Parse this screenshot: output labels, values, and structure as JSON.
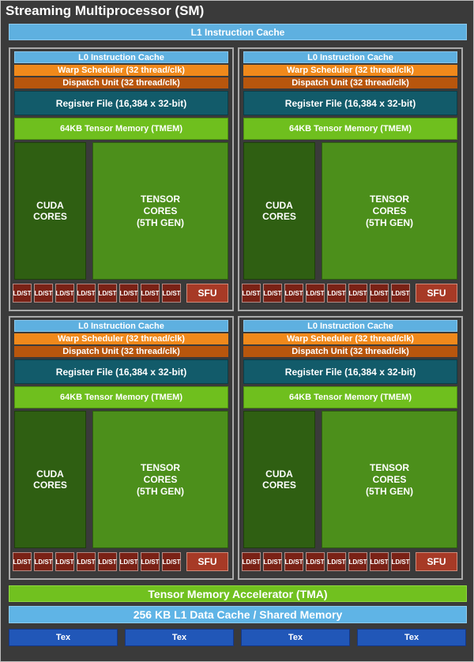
{
  "title": "Streaming Multiprocessor (SM)",
  "l1_instruction_cache": "L1 Instruction Cache",
  "quadrant": {
    "l0_cache": "L0 Instruction Cache",
    "warp_scheduler": "Warp Scheduler (32 thread/clk)",
    "dispatch_unit": "Dispatch Unit (32 thread/clk)",
    "register_file": "Register File (16,384 x 32-bit)",
    "tmem": "64KB Tensor Memory (TMEM)",
    "cuda_cores": "CUDA\nCORES",
    "tensor_cores": "TENSOR\nCORES\n(5TH GEN)",
    "ldst": "LD/ST",
    "sfu": "SFU"
  },
  "tma": "Tensor Memory Accelerator (TMA)",
  "l1_data_cache": "256 KB L1 Data Cache / Shared Memory",
  "tex_units": [
    "Tex",
    "Tex",
    "Tex",
    "Tex"
  ],
  "colors": {
    "background": "#3a3a3a",
    "cache_blue": "#5eb0e0",
    "warp_orange": "#f0891b",
    "dispatch_brown": "#b8560d",
    "register_teal": "#125b6a",
    "tmem_green": "#6fbf1e",
    "cuda_dark_green": "#2f5f12",
    "tensor_green": "#4c8f1b",
    "ldst_red": "#7a2216",
    "sfu_red": "#a73a26",
    "tex_blue": "#2157b8"
  }
}
